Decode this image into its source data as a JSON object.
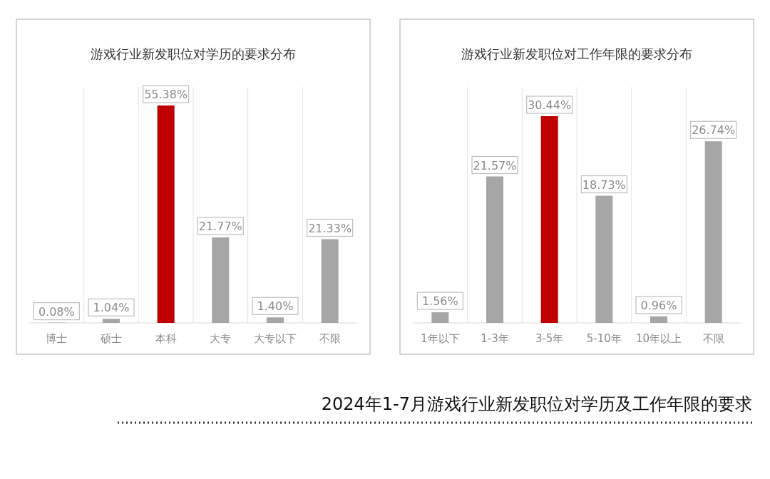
{
  "chart_data": [
    {
      "type": "bar",
      "title": "游戏行业新发职位对学历的要求分布",
      "categories": [
        "博士",
        "硕士",
        "本科",
        "大专",
        "大专以下",
        "不限"
      ],
      "values": [
        0.08,
        1.04,
        55.38,
        21.77,
        1.4,
        21.33
      ],
      "value_labels": [
        "0.08%",
        "1.04%",
        "55.38%",
        "21.77%",
        "1.40%",
        "21.33%"
      ],
      "colors": [
        "#a6a6a6",
        "#a6a6a6",
        "#c00000",
        "#a6a6a6",
        "#a6a6a6",
        "#a6a6a6"
      ]
    },
    {
      "type": "bar",
      "title": "游戏行业新发职位对工作年限的要求分布",
      "categories": [
        "1年以下",
        "1-3年",
        "3-5年",
        "5-10年",
        "10年以上",
        "不限"
      ],
      "values": [
        1.56,
        21.57,
        30.44,
        18.73,
        0.96,
        26.74
      ],
      "value_labels": [
        "1.56%",
        "21.57%",
        "30.44%",
        "18.73%",
        "0.96%",
        "26.74%"
      ],
      "colors": [
        "#a6a6a6",
        "#a6a6a6",
        "#c00000",
        "#a6a6a6",
        "#a6a6a6",
        "#a6a6a6"
      ],
      "annotations": [
        "2024年1-7月游戏行业新发职位对学历及工作年限的要求"
      ]
    }
  ]
}
